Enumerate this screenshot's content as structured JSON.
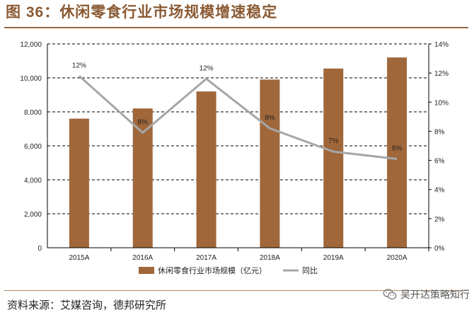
{
  "page_title": "图 36：休闲零食行业市场规模增速稳定",
  "source": "资料来源：艾媒咨询，德邦研究所",
  "watermark": {
    "text": "吴开达策略知行",
    "icon": "wechat-icon"
  },
  "colors": {
    "bar": "#a0673a",
    "line": "#a6a6a6",
    "title": "#8a5a33",
    "grid": "#000000"
  },
  "chart_data": {
    "type": "bar-line",
    "title": "休闲零食行业市场规模增速稳定",
    "categories": [
      "2015A",
      "2016A",
      "2017A",
      "2018A",
      "2019A",
      "2020A"
    ],
    "series": [
      {
        "name": "休闲零食行业市场规模（亿元）",
        "type": "bar",
        "axis": "left",
        "values": [
          7600,
          8200,
          9200,
          9900,
          10550,
          11200
        ]
      },
      {
        "name": "同比",
        "type": "line",
        "axis": "right",
        "values": [
          11.8,
          7.9,
          11.6,
          8.2,
          6.6,
          6.1
        ],
        "labels": [
          "12%",
          "8%",
          "12%",
          "8%",
          "7%",
          "6%"
        ]
      }
    ],
    "left_axis": {
      "min": 0,
      "max": 12000,
      "step": 2000,
      "tick_labels": [
        "0",
        "2,000",
        "4,000",
        "6,000",
        "8,000",
        "10,000",
        "12,000"
      ]
    },
    "right_axis": {
      "min": 0,
      "max": 14,
      "step": 2,
      "tick_labels": [
        "0%",
        "2%",
        "4%",
        "6%",
        "8%",
        "10%",
        "12%",
        "14%"
      ]
    },
    "grid": true,
    "legend_position": "bottom"
  }
}
